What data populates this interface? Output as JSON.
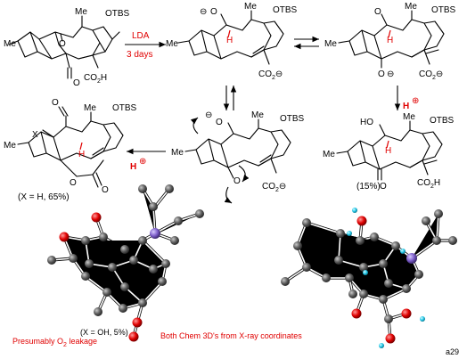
{
  "reagents": {
    "base": "LDA",
    "time": "3 days"
  },
  "atoms": {
    "me": "Me",
    "otbs": "OTBS",
    "o": "O",
    "h": "H",
    "ho": "HO",
    "x": "X",
    "co2h": "CO",
    "co2h_sub": "2",
    "co2h_tail": "H",
    "co2": "CO",
    "co2_sub": "2",
    "minus": "⊖",
    "plus": "⊕"
  },
  "yields": {
    "lactone": "(X = H, 65%)",
    "acid": "(15%)",
    "oh_product": "(X = OH, 5%)"
  },
  "notes": {
    "leak_pre": "Presumably O",
    "leak_sub": "2",
    "leak_post": " leakage",
    "xray": "Both Chem 3D's from X-ray coordinates",
    "page_no": "a29"
  },
  "colors": {
    "accent": "#e00000",
    "atom_c": "#595959",
    "atom_o": "#e00000",
    "atom_h": "#22c8e8",
    "atom_si": "#7b5cc8"
  }
}
